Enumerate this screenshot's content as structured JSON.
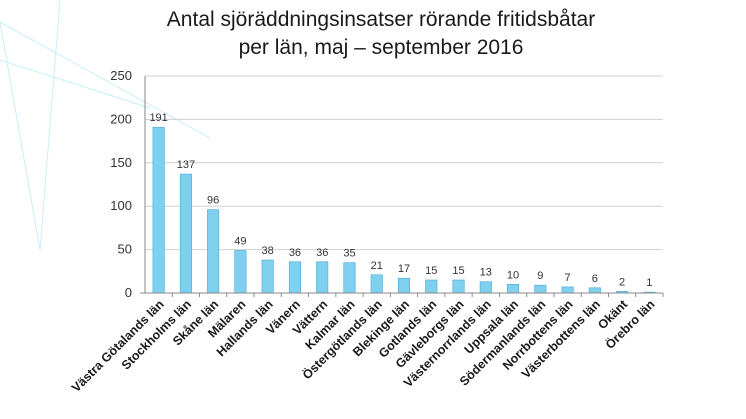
{
  "chart_data": {
    "type": "bar",
    "title_lines": [
      "Antal sjöräddningsinsatser rörande fritidsbåtar",
      "per län, maj – september 2016"
    ],
    "categories": [
      "Västra Götalands län",
      "Stockholms län",
      "Skåne län",
      "Mälaren",
      "Hallands län",
      "Vänern",
      "Vättern",
      "Kalmar län",
      "Östergötlands län",
      "Blekinge län",
      "Gotlands län",
      "Gävleborgs län",
      "Västernorrlands län",
      "Uppsala län",
      "Södermanlands län",
      "Norrbottens län",
      "Västerbottens län",
      "Okänt",
      "Örebro län"
    ],
    "values": [
      191,
      137,
      96,
      49,
      38,
      36,
      36,
      35,
      21,
      17,
      15,
      15,
      13,
      10,
      9,
      7,
      6,
      2,
      1
    ],
    "y_ticks": [
      "0",
      "50",
      "100",
      "150",
      "200",
      "250"
    ],
    "ylim": [
      0,
      250
    ],
    "grid": true,
    "data_labels": true,
    "bar_color": "#7fd0ee",
    "bar_edge_color": "#4aa8d4",
    "grid_color": "#d0d0d0",
    "axis_color": "#8a8a8a",
    "decoration_color": "#c8eef8"
  }
}
